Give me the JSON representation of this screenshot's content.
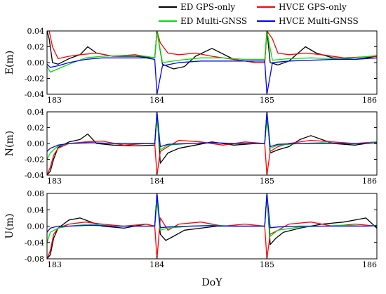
{
  "chart_data": [
    {
      "type": "line",
      "panel": "E",
      "ylabel": "E(m)",
      "xlabel": "",
      "xlim": [
        183,
        186
      ],
      "ylim": [
        -0.04,
        0.04
      ],
      "xticks": [
        "183",
        "184",
        "185",
        "186"
      ],
      "yticks": [
        "0.04",
        "0.02",
        "0.00",
        "-0.02",
        "-0.04"
      ],
      "series": [
        {
          "name": "ED GPS-only",
          "color": "#000000",
          "x": [
            183.0,
            183.02,
            183.05,
            183.1,
            183.2,
            183.3,
            183.37,
            183.45,
            183.6,
            183.8,
            183.98,
            184.0,
            184.05,
            184.15,
            184.25,
            184.35,
            184.5,
            184.7,
            184.9,
            184.98,
            185.0,
            185.03,
            185.1,
            185.2,
            185.35,
            185.45,
            185.6,
            185.8,
            186.0
          ],
          "y": [
            0.04,
            0.03,
            0.0,
            -0.002,
            0.005,
            0.01,
            0.02,
            0.012,
            0.008,
            0.008,
            0.006,
            0.04,
            -0.002,
            -0.008,
            -0.005,
            0.008,
            0.018,
            0.004,
            0.0,
            0.0,
            0.04,
            0.0,
            -0.003,
            0.002,
            0.02,
            0.012,
            0.006,
            0.004,
            0.008
          ]
        },
        {
          "name": "HVCE GPS-only",
          "color": "#ff0000",
          "x": [
            183.0,
            183.02,
            183.05,
            183.1,
            183.2,
            183.3,
            183.45,
            183.6,
            183.8,
            183.98,
            184.0,
            184.03,
            184.1,
            184.2,
            184.35,
            184.5,
            184.7,
            184.9,
            184.98,
            185.0,
            185.05,
            185.1,
            185.2,
            185.35,
            185.5,
            185.7,
            186.0
          ],
          "y": [
            0.04,
            0.04,
            0.02,
            0.005,
            0.008,
            0.01,
            0.012,
            0.008,
            0.01,
            0.006,
            0.04,
            0.025,
            0.012,
            0.01,
            0.012,
            0.008,
            0.004,
            0.0,
            0.0,
            0.04,
            0.03,
            0.012,
            0.01,
            0.012,
            0.01,
            0.006,
            0.008
          ]
        },
        {
          "name": "ED Multi-GNSS",
          "color": "#00e000",
          "x": [
            183.0,
            183.03,
            183.1,
            183.2,
            183.35,
            183.5,
            183.7,
            183.9,
            183.98,
            184.0,
            184.05,
            184.2,
            184.4,
            184.6,
            184.8,
            184.98,
            185.0,
            185.05,
            185.2,
            185.4,
            185.6,
            185.8,
            186.0
          ],
          "y": [
            -0.005,
            -0.012,
            -0.008,
            -0.002,
            0.006,
            0.008,
            0.009,
            0.008,
            0.006,
            0.04,
            0.0,
            0.003,
            0.006,
            0.006,
            0.004,
            0.004,
            0.04,
            0.003,
            0.005,
            0.006,
            0.005,
            0.006,
            0.009
          ]
        },
        {
          "name": "HVCE Multi-GNSS",
          "color": "#0000ff",
          "x": [
            183.0,
            183.03,
            183.1,
            183.2,
            183.35,
            183.5,
            183.7,
            183.9,
            183.98,
            184.0,
            184.05,
            184.2,
            184.4,
            184.6,
            184.8,
            184.98,
            185.0,
            185.05,
            185.2,
            185.4,
            185.6,
            185.8,
            186.0
          ],
          "y": [
            -0.002,
            -0.006,
            -0.004,
            0.0,
            0.004,
            0.006,
            0.006,
            0.006,
            0.004,
            -0.04,
            -0.004,
            0.0,
            0.002,
            0.002,
            0.002,
            0.002,
            -0.04,
            0.0,
            0.002,
            0.003,
            0.004,
            0.004,
            0.006
          ]
        }
      ]
    },
    {
      "type": "line",
      "panel": "N",
      "ylabel": "N(m)",
      "xlabel": "",
      "xlim": [
        183,
        186
      ],
      "ylim": [
        -0.04,
        0.04
      ],
      "xticks": [
        "183",
        "184",
        "185",
        "186"
      ],
      "yticks": [
        "0.04",
        "0.02",
        "0.00",
        "-0.02",
        "-0.04"
      ],
      "series": [
        {
          "name": "ED GPS-only",
          "color": "#000000",
          "x": [
            183.0,
            183.03,
            183.06,
            183.1,
            183.2,
            183.3,
            183.37,
            183.45,
            183.6,
            183.8,
            183.98,
            184.0,
            184.03,
            184.1,
            184.2,
            184.35,
            184.5,
            184.7,
            184.9,
            184.98,
            185.0,
            185.03,
            185.1,
            185.2,
            185.3,
            185.4,
            185.6,
            185.8,
            186.0
          ],
          "y": [
            -0.04,
            -0.035,
            -0.02,
            -0.005,
            0.002,
            0.005,
            0.012,
            0.0,
            -0.002,
            -0.003,
            -0.002,
            0.04,
            -0.025,
            -0.012,
            -0.006,
            -0.002,
            0.002,
            -0.002,
            0.0,
            0.0,
            0.04,
            -0.012,
            -0.008,
            -0.004,
            0.005,
            0.01,
            0.0,
            -0.002,
            0.002
          ]
        },
        {
          "name": "HVCE GPS-only",
          "color": "#ff0000",
          "x": [
            183.0,
            183.03,
            183.06,
            183.1,
            183.2,
            183.35,
            183.5,
            183.7,
            183.9,
            183.98,
            184.0,
            184.03,
            184.1,
            184.2,
            184.4,
            184.6,
            184.8,
            184.98,
            185.0,
            185.03,
            185.1,
            185.2,
            185.4,
            185.6,
            185.8,
            186.0
          ],
          "y": [
            -0.04,
            -0.03,
            -0.015,
            -0.006,
            0.0,
            0.002,
            0.003,
            -0.002,
            0.0,
            0.0,
            -0.04,
            -0.01,
            -0.004,
            0.004,
            0.002,
            -0.002,
            0.002,
            0.0,
            -0.04,
            -0.01,
            -0.004,
            0.0,
            0.004,
            0.002,
            0.0,
            0.002
          ]
        },
        {
          "name": "ED Multi-GNSS",
          "color": "#00e000",
          "x": [
            183.0,
            183.03,
            183.1,
            183.2,
            183.4,
            183.6,
            183.8,
            183.98,
            184.0,
            184.03,
            184.1,
            184.3,
            184.5,
            184.7,
            184.9,
            184.98,
            185.0,
            185.03,
            185.1,
            185.3,
            185.5,
            185.7,
            185.9,
            186.0
          ],
          "y": [
            -0.02,
            -0.012,
            -0.003,
            0.0,
            0.001,
            0.0,
            0.0,
            0.0,
            0.03,
            -0.008,
            -0.002,
            0.0,
            0.001,
            0.0,
            0.0,
            0.0,
            0.03,
            -0.006,
            -0.002,
            0.0,
            0.001,
            0.0,
            0.0,
            0.002
          ]
        },
        {
          "name": "HVCE Multi-GNSS",
          "color": "#0000ff",
          "x": [
            183.0,
            183.03,
            183.1,
            183.2,
            183.4,
            183.6,
            183.8,
            183.98,
            184.0,
            184.03,
            184.1,
            184.3,
            184.5,
            184.7,
            184.9,
            184.98,
            185.0,
            185.03,
            185.1,
            185.3,
            185.5,
            185.7,
            185.9,
            186.0
          ],
          "y": [
            -0.01,
            -0.006,
            -0.002,
            0.0,
            0.001,
            0.0,
            0.0,
            0.0,
            0.04,
            -0.004,
            -0.001,
            0.0,
            0.001,
            0.0,
            0.0,
            0.0,
            0.04,
            -0.004,
            -0.001,
            0.0,
            0.0,
            0.0,
            0.0,
            0.001
          ]
        }
      ]
    },
    {
      "type": "line",
      "panel": "U",
      "ylabel": "U(m)",
      "xlabel": "DoY",
      "xlim": [
        183,
        186
      ],
      "ylim": [
        -0.08,
        0.08
      ],
      "xticks": [
        "183",
        "184",
        "185",
        "186"
      ],
      "yticks": [
        "0.08",
        "0.04",
        "0.00",
        "-0.04",
        "-0.08"
      ],
      "series": [
        {
          "name": "ED GPS-only",
          "color": "#000000",
          "x": [
            183.0,
            183.03,
            183.06,
            183.1,
            183.2,
            183.3,
            183.4,
            183.5,
            183.7,
            183.9,
            183.98,
            184.0,
            184.03,
            184.08,
            184.15,
            184.25,
            184.4,
            184.55,
            184.7,
            184.9,
            184.98,
            185.0,
            185.03,
            185.08,
            185.15,
            185.3,
            185.5,
            185.7,
            185.9,
            186.0
          ],
          "y": [
            -0.08,
            -0.07,
            -0.03,
            -0.005,
            0.015,
            0.02,
            0.01,
            0.0,
            -0.005,
            0.005,
            0.0,
            0.08,
            -0.02,
            -0.035,
            -0.025,
            -0.01,
            -0.005,
            0.0,
            0.0,
            0.0,
            0.0,
            0.08,
            -0.045,
            -0.03,
            -0.015,
            -0.005,
            0.005,
            0.01,
            0.02,
            -0.005
          ]
        },
        {
          "name": "HVCE GPS-only",
          "color": "#ff0000",
          "x": [
            183.0,
            183.03,
            183.06,
            183.1,
            183.2,
            183.35,
            183.5,
            183.7,
            183.9,
            183.98,
            184.0,
            184.03,
            184.1,
            184.2,
            184.4,
            184.6,
            184.8,
            184.98,
            185.0,
            185.03,
            185.1,
            185.2,
            185.4,
            185.6,
            185.8,
            186.0
          ],
          "y": [
            -0.08,
            -0.06,
            -0.02,
            -0.005,
            0.005,
            0.01,
            0.005,
            0.0,
            0.005,
            0.0,
            -0.08,
            0.02,
            -0.01,
            0.005,
            0.01,
            0.0,
            0.005,
            0.0,
            -0.08,
            -0.02,
            -0.01,
            0.005,
            0.01,
            0.0,
            0.005,
            0.0
          ]
        },
        {
          "name": "ED Multi-GNSS",
          "color": "#00e000",
          "x": [
            183.0,
            183.03,
            183.1,
            183.2,
            183.4,
            183.6,
            183.8,
            183.98,
            184.0,
            184.03,
            184.1,
            184.3,
            184.5,
            184.7,
            184.9,
            184.98,
            185.0,
            185.03,
            185.1,
            185.3,
            185.5,
            185.7,
            185.9,
            186.0
          ],
          "y": [
            -0.04,
            -0.015,
            -0.005,
            0.0,
            0.005,
            0.0,
            0.0,
            0.0,
            0.06,
            -0.01,
            -0.005,
            0.0,
            0.002,
            0.0,
            0.0,
            0.0,
            0.08,
            -0.025,
            -0.01,
            -0.002,
            0.0,
            0.002,
            0.0,
            0.002
          ]
        },
        {
          "name": "HVCE Multi-GNSS",
          "color": "#0000ff",
          "x": [
            183.0,
            183.03,
            183.1,
            183.2,
            183.4,
            183.6,
            183.8,
            183.98,
            184.0,
            184.03,
            184.1,
            184.3,
            184.5,
            184.7,
            184.9,
            184.98,
            185.0,
            185.03,
            185.1,
            185.3,
            185.5,
            185.7,
            185.9,
            186.0
          ],
          "y": [
            -0.015,
            -0.005,
            0.0,
            0.0,
            0.002,
            0.0,
            0.0,
            0.0,
            0.08,
            -0.004,
            -0.002,
            0.0,
            0.001,
            0.0,
            0.0,
            0.0,
            0.08,
            -0.004,
            -0.002,
            0.0,
            0.0,
            0.0,
            0.0,
            0.001
          ]
        }
      ]
    }
  ],
  "legend": {
    "placement": "top",
    "items": [
      {
        "label": "ED GPS-only",
        "color": "#000000"
      },
      {
        "label": "HVCE GPS-only",
        "color": "#ff0000"
      },
      {
        "label": "ED Multi-GNSS",
        "color": "#00e000"
      },
      {
        "label": "HVCE Multi-GNSS",
        "color": "#0000ff"
      }
    ]
  }
}
